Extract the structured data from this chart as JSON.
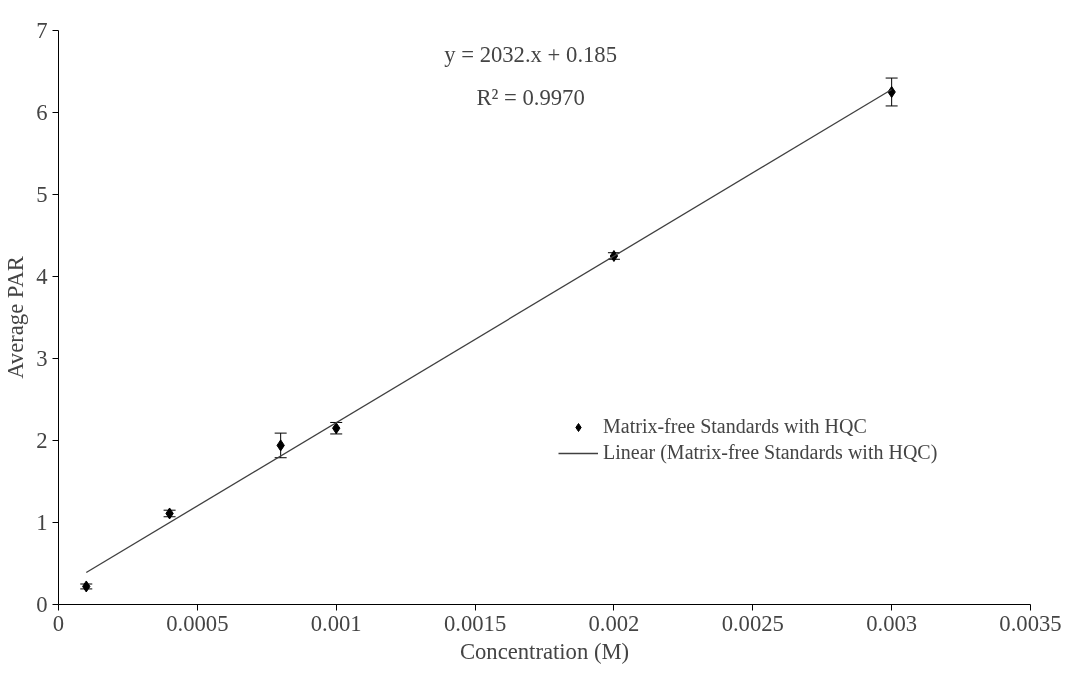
{
  "chart_data": {
    "type": "scatter",
    "xlabel": "Concentration (M)",
    "ylabel": "Average PAR",
    "xlim": [
      0,
      0.0035
    ],
    "xticks": [
      0,
      0.0005,
      0.001,
      0.0015,
      0.002,
      0.0025,
      0.003,
      0.0035
    ],
    "ylim": [
      0,
      7
    ],
    "yticks": [
      0,
      1,
      2,
      3,
      4,
      5,
      6,
      7
    ],
    "grid": false,
    "legend": "right",
    "marker": "diamond",
    "annotations": [
      "y = 2032.x + 0.185",
      "R² = 0.9970"
    ],
    "series": [
      {
        "name": "Matrix-free Standards with HQC",
        "color": "#000000",
        "x": [
          0.0001,
          0.0004,
          0.0008,
          0.001,
          0.002,
          0.003
        ],
        "values": [
          0.22,
          1.11,
          1.94,
          2.15,
          4.25,
          6.25
        ],
        "errors": [
          0.03,
          0.04,
          0.15,
          0.07,
          0.04,
          0.17
        ]
      },
      {
        "name": "Linear (Matrix-free Standards with HQC)",
        "color": "#404040",
        "type": "line",
        "x": [
          0.0001,
          0.003
        ],
        "values": [
          0.39,
          6.28
        ],
        "line_style": "solid",
        "marker": "none"
      }
    ]
  }
}
